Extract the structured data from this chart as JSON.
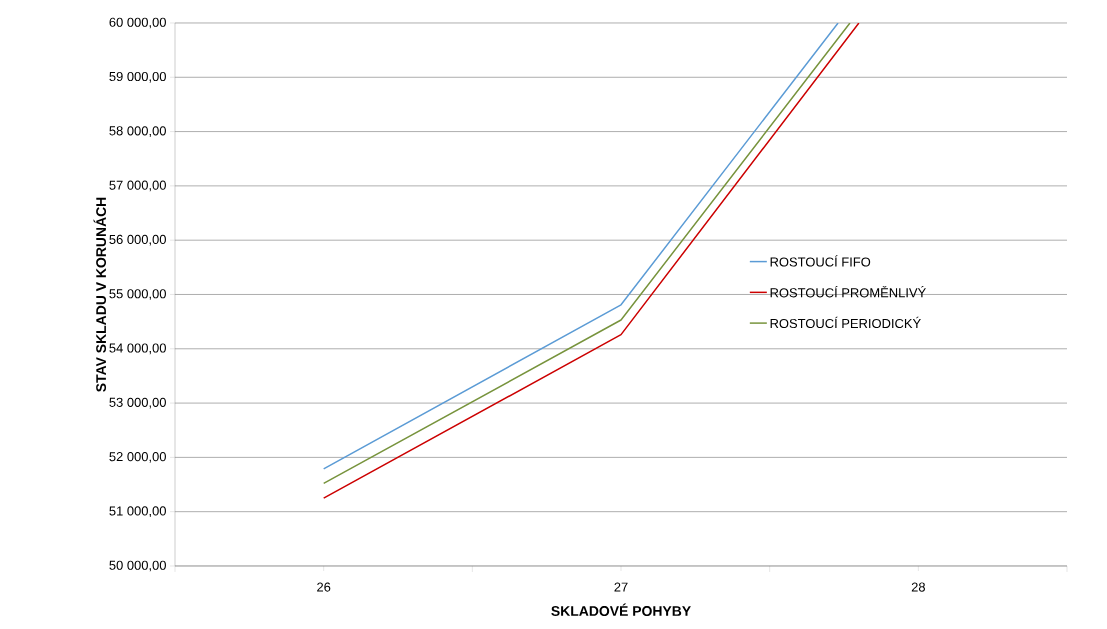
{
  "chart_data": {
    "type": "line",
    "xlabel": "SKLADOVÉ POHYBY",
    "ylabel": "STAV SKLADU V KORUNÁCH",
    "xlim": [
      25.5,
      28.5
    ],
    "xticks": [
      {
        "value": 25.5,
        "label": null
      },
      {
        "value": 26,
        "label": "26"
      },
      {
        "value": 26.5,
        "label": null
      },
      {
        "value": 27,
        "label": "27"
      },
      {
        "value": 27.5,
        "label": null
      },
      {
        "value": 28,
        "label": "28"
      },
      {
        "value": 28.5,
        "label": null
      }
    ],
    "ylim": [
      50000,
      60000
    ],
    "yticks": [
      {
        "value": 50000,
        "label": "50 000,00"
      },
      {
        "value": 51000,
        "label": "51 000,00"
      },
      {
        "value": 52000,
        "label": "52 000,00"
      },
      {
        "value": 53000,
        "label": "53 000,00"
      },
      {
        "value": 54000,
        "label": "54 000,00"
      },
      {
        "value": 55000,
        "label": "55 000,00"
      },
      {
        "value": 56000,
        "label": "56 000,00"
      },
      {
        "value": 57000,
        "label": "57 000,00"
      },
      {
        "value": 58000,
        "label": "58 000,00"
      },
      {
        "value": 59000,
        "label": "59 000,00"
      },
      {
        "value": 60000,
        "label": "60 000,00"
      }
    ],
    "grid": "y",
    "legend": "right",
    "marker": "none",
    "line_style": "solid",
    "series": [
      {
        "name": "ROSTOUCÍ FIFO",
        "color": "#5b9bd5",
        "x": [
          26,
          27,
          27.73
        ],
        "values": [
          51790,
          54810,
          60000
        ]
      },
      {
        "name": "ROSTOUCÍ PROMĚNLIVÝ",
        "color": "#cc0000",
        "x": [
          26,
          27,
          27.8
        ],
        "values": [
          51250,
          54260,
          60000
        ]
      },
      {
        "name": "ROSTOUCÍ PERIODICKÝ",
        "color": "#77933c",
        "x": [
          26,
          27,
          27.77
        ],
        "values": [
          51520,
          54530,
          60000
        ]
      }
    ]
  }
}
